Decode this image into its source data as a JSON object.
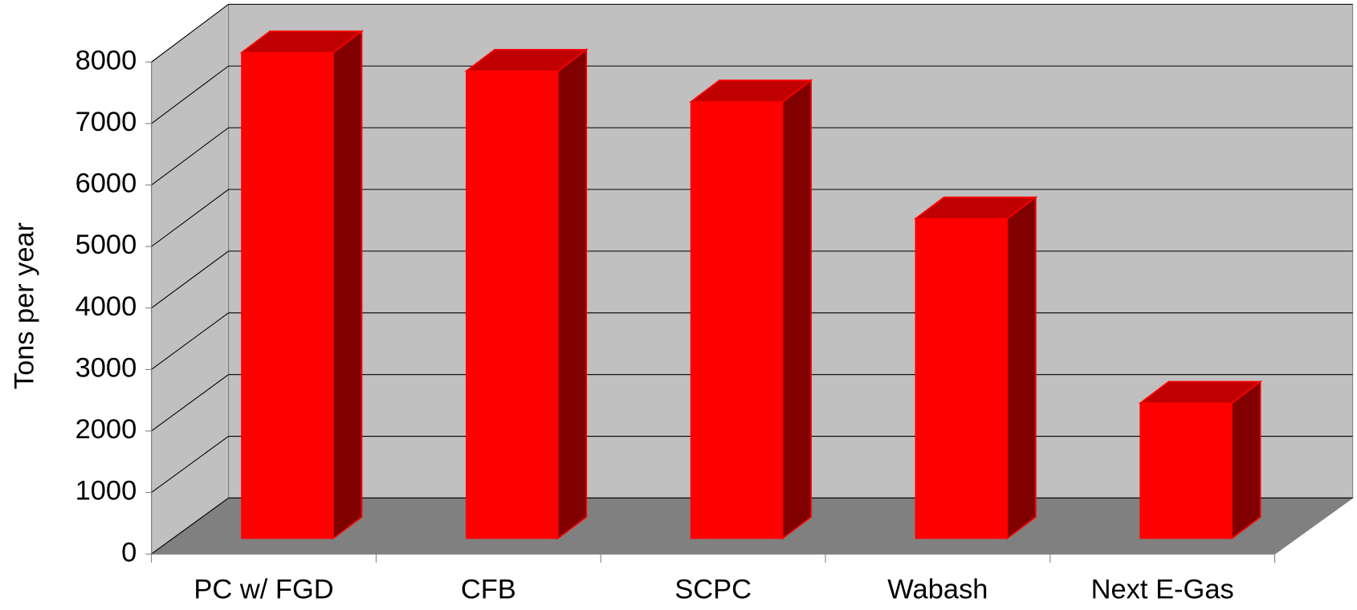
{
  "chart_data": {
    "type": "bar3d",
    "y_label": "Tons per year",
    "categories": [
      "PC w/ FGD",
      "CFB",
      "SCPC",
      "Wabash",
      "Next E-Gas"
    ],
    "values": [
      7900,
      7600,
      7100,
      5200,
      2200
    ],
    "color": "#ff0000",
    "ylim": [
      0,
      8000
    ],
    "yticks": [
      0,
      1000,
      2000,
      3000,
      4000,
      5000,
      6000,
      7000,
      8000
    ],
    "grid": true
  }
}
